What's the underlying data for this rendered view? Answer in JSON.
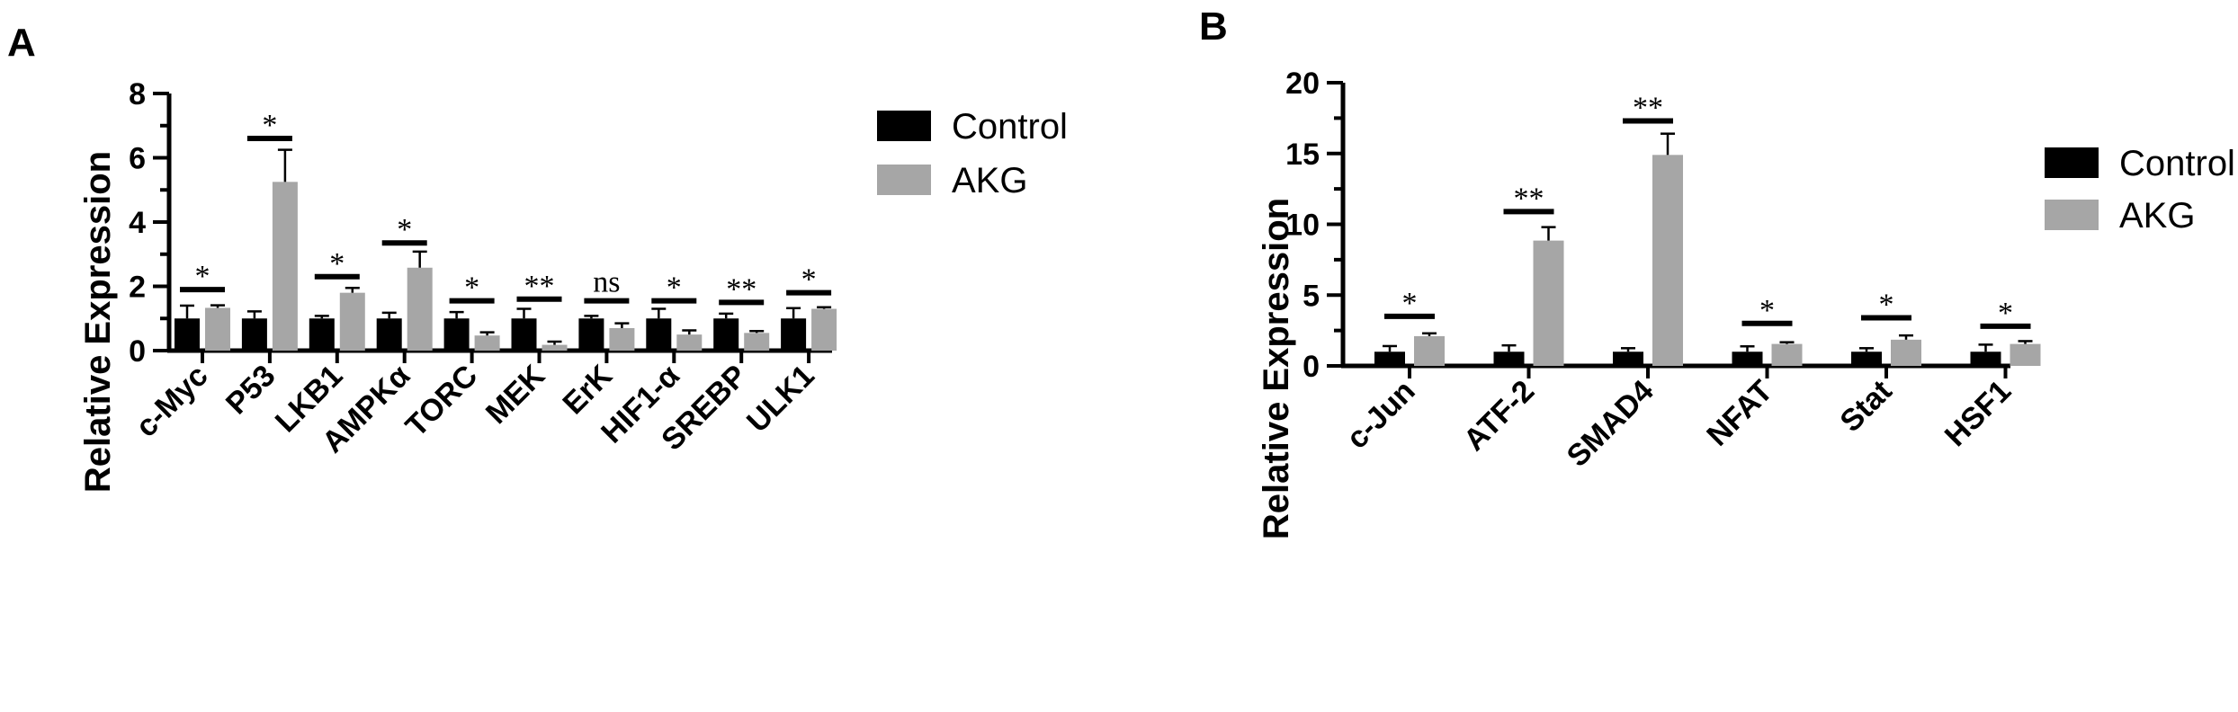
{
  "chart_data": [
    {
      "type": "bar",
      "panel": "A",
      "ylabel": "Relative Expression",
      "ylim": [
        0,
        8
      ],
      "yticks": [
        0,
        2,
        4,
        6,
        8
      ],
      "categories": [
        "c-Myc",
        "P53",
        "LKB1",
        "AMPKα",
        "TORC",
        "MEK",
        "ErK",
        "HIF1-α",
        "SREBP",
        "ULK1"
      ],
      "series": [
        {
          "name": "Control",
          "color": "#000000",
          "values": [
            1.0,
            1.0,
            1.0,
            1.0,
            1.0,
            1.0,
            1.0,
            1.0,
            1.0,
            1.0
          ],
          "errors": [
            0.4,
            0.22,
            0.08,
            0.18,
            0.2,
            0.3,
            0.08,
            0.3,
            0.15,
            0.32
          ]
        },
        {
          "name": "AKG",
          "color": "#a6a6a6",
          "values": [
            1.33,
            5.25,
            1.8,
            2.58,
            0.47,
            0.18,
            0.7,
            0.5,
            0.55,
            1.3
          ],
          "errors": [
            0.08,
            1.0,
            0.15,
            0.5,
            0.1,
            0.1,
            0.15,
            0.13,
            0.06,
            0.05
          ]
        }
      ],
      "significance": [
        "*",
        "*",
        "*",
        "*",
        "*",
        "**",
        "ns",
        "*",
        "**",
        "*"
      ],
      "sig_line_level": [
        1.9,
        6.6,
        2.3,
        3.35,
        1.55,
        1.6,
        1.55,
        1.55,
        1.5,
        1.8
      ],
      "legend": [
        "Control",
        "AKG"
      ],
      "legend_position": "top-right"
    },
    {
      "type": "bar",
      "panel": "B",
      "ylabel": "Relative Expression",
      "ylim": [
        0,
        20
      ],
      "yticks": [
        0,
        5,
        10,
        15,
        20
      ],
      "categories": [
        "c-Jun",
        "ATF-2",
        "SMAD4",
        "NFAT",
        "Stat",
        "HSF1"
      ],
      "series": [
        {
          "name": "Control",
          "color": "#000000",
          "values": [
            1.0,
            1.0,
            1.0,
            1.0,
            1.0,
            1.0
          ],
          "errors": [
            0.4,
            0.45,
            0.25,
            0.38,
            0.25,
            0.5
          ]
        },
        {
          "name": "AKG",
          "color": "#a6a6a6",
          "values": [
            2.1,
            8.85,
            14.9,
            1.55,
            1.85,
            1.55
          ],
          "errors": [
            0.2,
            0.95,
            1.5,
            0.12,
            0.3,
            0.2
          ]
        }
      ],
      "significance": [
        "*",
        "**",
        "**",
        "*",
        "*",
        "*"
      ],
      "sig_line_level": [
        3.5,
        10.9,
        17.3,
        3.0,
        3.4,
        2.8
      ],
      "legend": [
        "Control",
        "AKG"
      ],
      "legend_position": "top-right"
    }
  ]
}
